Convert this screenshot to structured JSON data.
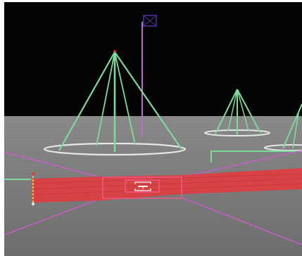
{
  "view": {
    "sky_color": "#050505",
    "ground_color_near": "#6f6f6f",
    "ground_color_far": "#8c8c8c",
    "horizon_fraction": 0.45
  },
  "colors": {
    "marker": "#7ed99a",
    "ring": "#e6e6e6",
    "flag_pole": "#b86cd1",
    "flag": "#4a2f9a",
    "target_zone": "#e8383b",
    "guide_lines": "#cf5ad1",
    "reticle": "#f3f3f3",
    "reticle_frame": "#f25a8a",
    "side_post": "#e6d24a",
    "green_rail": "#7ed99a"
  },
  "markers": [
    {
      "name": "near-cone-marker",
      "size": "large"
    },
    {
      "name": "mid-cone-marker",
      "size": "medium"
    },
    {
      "name": "far-right-cone-marker",
      "size": "small",
      "partial": true
    }
  ],
  "flag": {
    "icon": "flag-icon"
  },
  "target_zone": {
    "icon": "target-zone"
  },
  "reticle": {
    "icon": "crosshair-icon"
  }
}
